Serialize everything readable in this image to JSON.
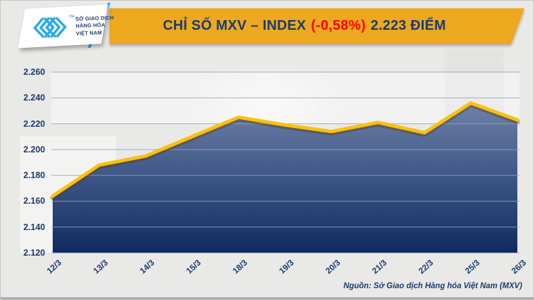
{
  "logo": {
    "lines": [
      "SỞ GIAO DỊCH",
      "HÀNG HÓA",
      "VIỆT NAM"
    ],
    "trademark": "TM"
  },
  "header": {
    "title_main": "CHỈ SỐ MXV – INDEX",
    "title_change": "(-0,58%)",
    "title_value": "2.223 ĐIỂM"
  },
  "footer": {
    "source": "Nguồn: Sở Giao dịch Hàng hóa Việt Nam (MXV)"
  },
  "colors": {
    "background": "#E9E9E8",
    "banner_yellow": "#ECA91F",
    "navy": "#1C3A6E",
    "red": "#FF0000",
    "cyan": "#2AABE2",
    "line_yellow": "#FDC010",
    "line_shadow": "rgba(92,62,0,0.40)",
    "grid": "#94A1BA",
    "area_top": "#6D82A9",
    "area_bottom": "#0F2A62"
  },
  "chart_data": {
    "type": "area",
    "title": "CHỈ SỐ MXV – INDEX (-0,58%) 2.223 ĐIỂM",
    "categories": [
      "12/3",
      "13/3",
      "14/3",
      "15/3",
      "18/3",
      "19/3",
      "20/3",
      "21/3",
      "22/3",
      "25/3",
      "26/3"
    ],
    "values": [
      2.164,
      2.188,
      2.195,
      2.21,
      2.225,
      2.219,
      2.214,
      2.221,
      2.213,
      2.236,
      2.223
    ],
    "xlabel": "",
    "ylabel": "",
    "ylim": [
      2.12,
      2.26
    ],
    "ytick_step": 0.02,
    "ytick_labels": [
      "2.120",
      "2.140",
      "2.160",
      "2.180",
      "2.200",
      "2.220",
      "2.240",
      "2.260"
    ],
    "grid": true,
    "legend": "none"
  }
}
